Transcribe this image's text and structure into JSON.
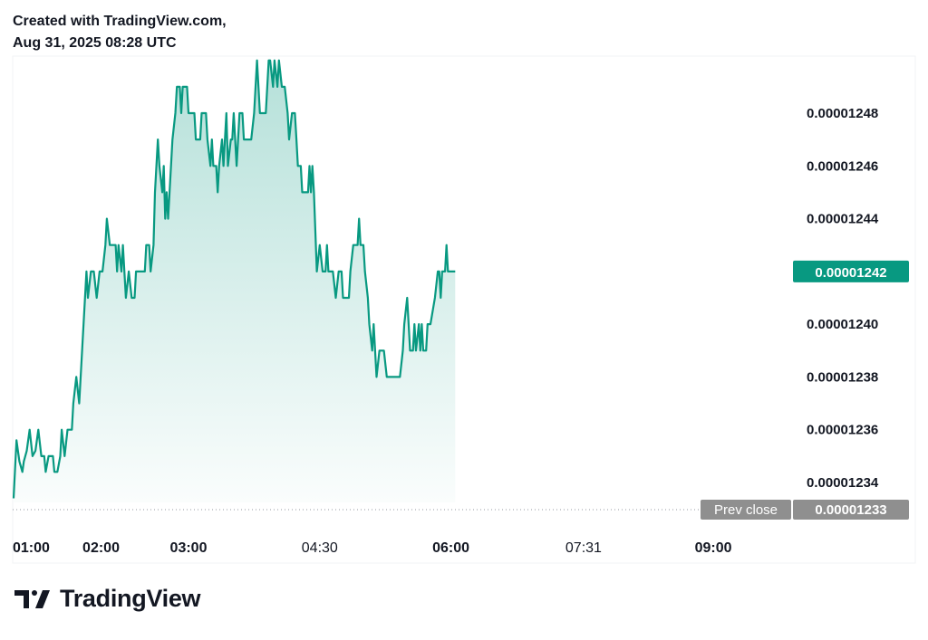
{
  "header": {
    "line1": "Created with TradingView.com,",
    "line2": "Aug 31, 2025 08:28 UTC"
  },
  "logo": {
    "wordmark": "TradingView",
    "icon": "tradingview-logo-icon"
  },
  "colors": {
    "line": "#089981",
    "badge": "#089981",
    "prev_badge": "#8f8f8f",
    "text": "#131722"
  },
  "chart_data": {
    "type": "area",
    "title": "",
    "xlabel": "",
    "ylabel": "",
    "ylim": [
      1.2327e-05,
      1.252e-05
    ],
    "y_ticks": [
      "0.00001234",
      "0.00001236",
      "0.00001238",
      "0.00001240",
      "0.00001242",
      "0.00001244",
      "0.00001246",
      "0.00001248"
    ],
    "x_ticks": [
      {
        "label": "01:00",
        "minute": 60,
        "bold": true
      },
      {
        "label": "02:00",
        "minute": 120,
        "bold": true
      },
      {
        "label": "03:00",
        "minute": 180,
        "bold": true
      },
      {
        "label": "04:30",
        "minute": 270,
        "bold": false
      },
      {
        "label": "06:00",
        "minute": 360,
        "bold": true
      },
      {
        "label": "07:31",
        "minute": 451,
        "bold": false
      },
      {
        "label": "09:00",
        "minute": 540,
        "bold": true
      }
    ],
    "x_range_minutes": [
      60,
      576
    ],
    "series": [
      {
        "points": [
          [
            60,
            1.2334e-05
          ],
          [
            62,
            1.2356e-05
          ],
          [
            63,
            1.2352e-05
          ],
          [
            64,
            1.2348e-05
          ],
          [
            66,
            1.2344e-05
          ],
          [
            67,
            1.2348e-05
          ],
          [
            69,
            1.2352e-05
          ],
          [
            71,
            1.236e-05
          ],
          [
            73,
            1.235e-05
          ],
          [
            75,
            1.2352e-05
          ],
          [
            77,
            1.236e-05
          ],
          [
            79,
            1.235e-05
          ],
          [
            81,
            1.235e-05
          ],
          [
            82,
            1.2344e-05
          ],
          [
            84,
            1.235e-05
          ],
          [
            87,
            1.235e-05
          ],
          [
            88,
            1.2344e-05
          ],
          [
            90,
            1.2344e-05
          ],
          [
            92,
            1.235e-05
          ],
          [
            93,
            1.236e-05
          ],
          [
            95,
            1.235e-05
          ],
          [
            97,
            1.236e-05
          ],
          [
            98,
            1.236e-05
          ],
          [
            100,
            1.236e-05
          ],
          [
            101,
            1.237e-05
          ],
          [
            103,
            1.238e-05
          ],
          [
            105,
            1.237e-05
          ],
          [
            107,
            1.239e-05
          ],
          [
            108,
            1.24e-05
          ],
          [
            110,
            1.242e-05
          ],
          [
            111,
            1.241e-05
          ],
          [
            113,
            1.242e-05
          ],
          [
            115,
            1.242e-05
          ],
          [
            117,
            1.241e-05
          ],
          [
            119,
            1.242e-05
          ],
          [
            121,
            1.242e-05
          ],
          [
            123,
            1.243e-05
          ],
          [
            124,
            1.244e-05
          ],
          [
            126,
            1.243e-05
          ],
          [
            128,
            1.243e-05
          ],
          [
            130,
            1.243e-05
          ],
          [
            131,
            1.242e-05
          ],
          [
            132,
            1.243e-05
          ],
          [
            134,
            1.242e-05
          ],
          [
            135,
            1.243e-05
          ],
          [
            137,
            1.241e-05
          ],
          [
            139,
            1.242e-05
          ],
          [
            141,
            1.241e-05
          ],
          [
            143,
            1.241e-05
          ],
          [
            144,
            1.242e-05
          ],
          [
            146,
            1.242e-05
          ],
          [
            150,
            1.242e-05
          ],
          [
            151,
            1.243e-05
          ],
          [
            153,
            1.243e-05
          ],
          [
            154,
            1.242e-05
          ],
          [
            156,
            1.243e-05
          ],
          [
            157,
            1.245e-05
          ],
          [
            159,
            1.247e-05
          ],
          [
            160,
            1.246e-05
          ],
          [
            162,
            1.245e-05
          ],
          [
            163,
            1.246e-05
          ],
          [
            164,
            1.244e-05
          ],
          [
            165,
            1.245e-05
          ],
          [
            166,
            1.244e-05
          ],
          [
            167,
            1.245e-05
          ],
          [
            169,
            1.247e-05
          ],
          [
            171,
            1.248e-05
          ],
          [
            172,
            1.249e-05
          ],
          [
            174,
            1.249e-05
          ],
          [
            175,
            1.248e-05
          ],
          [
            176,
            1.249e-05
          ],
          [
            179,
            1.249e-05
          ],
          [
            180,
            1.248e-05
          ],
          [
            184,
            1.248e-05
          ],
          [
            185,
            1.247e-05
          ],
          [
            188,
            1.247e-05
          ],
          [
            189,
            1.248e-05
          ],
          [
            192,
            1.248e-05
          ],
          [
            193,
            1.247e-05
          ],
          [
            195,
            1.246e-05
          ],
          [
            196,
            1.247e-05
          ],
          [
            197,
            1.246e-05
          ],
          [
            199,
            1.246e-05
          ],
          [
            200,
            1.245e-05
          ],
          [
            201,
            1.246e-05
          ],
          [
            203,
            1.247e-05
          ],
          [
            204,
            1.246e-05
          ],
          [
            206,
            1.248e-05
          ],
          [
            207,
            1.246e-05
          ],
          [
            209,
            1.247e-05
          ],
          [
            210,
            1.247e-05
          ],
          [
            211,
            1.248e-05
          ],
          [
            212,
            1.247e-05
          ],
          [
            213,
            1.246e-05
          ],
          [
            215,
            1.248e-05
          ],
          [
            217,
            1.248e-05
          ],
          [
            218,
            1.247e-05
          ],
          [
            223,
            1.247e-05
          ],
          [
            225,
            1.248e-05
          ],
          [
            227,
            1.25e-05
          ],
          [
            229,
            1.248e-05
          ],
          [
            233,
            1.248e-05
          ],
          [
            234,
            1.249e-05
          ],
          [
            235,
            1.25e-05
          ],
          [
            236,
            1.25e-05
          ],
          [
            238,
            1.249e-05
          ],
          [
            239,
            1.25e-05
          ],
          [
            241,
            1.249e-05
          ],
          [
            242,
            1.25e-05
          ],
          [
            244,
            1.249e-05
          ],
          [
            246,
            1.249e-05
          ],
          [
            248,
            1.248e-05
          ],
          [
            249,
            1.247e-05
          ],
          [
            251,
            1.248e-05
          ],
          [
            253,
            1.248e-05
          ],
          [
            254,
            1.247e-05
          ],
          [
            255,
            1.246e-05
          ],
          [
            257,
            1.246e-05
          ],
          [
            258,
            1.245e-05
          ],
          [
            262,
            1.245e-05
          ],
          [
            263,
            1.246e-05
          ],
          [
            264,
            1.245e-05
          ],
          [
            265,
            1.246e-05
          ],
          [
            266,
            1.245e-05
          ],
          [
            268,
            1.242e-05
          ],
          [
            270,
            1.243e-05
          ],
          [
            272,
            1.242e-05
          ],
          [
            274,
            1.242e-05
          ],
          [
            275,
            1.243e-05
          ],
          [
            276,
            1.242e-05
          ],
          [
            279,
            1.242e-05
          ],
          [
            281,
            1.241e-05
          ],
          [
            283,
            1.242e-05
          ],
          [
            285,
            1.242e-05
          ],
          [
            286,
            1.241e-05
          ],
          [
            290,
            1.241e-05
          ],
          [
            291,
            1.242e-05
          ],
          [
            293,
            1.243e-05
          ],
          [
            296,
            1.243e-05
          ],
          [
            297,
            1.244e-05
          ],
          [
            298,
            1.243e-05
          ],
          [
            300,
            1.243e-05
          ],
          [
            301,
            1.242e-05
          ],
          [
            303,
            1.241e-05
          ],
          [
            304,
            1.24e-05
          ],
          [
            306,
            1.239e-05
          ],
          [
            307,
            1.24e-05
          ],
          [
            308,
            1.239e-05
          ],
          [
            309,
            1.238e-05
          ],
          [
            311,
            1.239e-05
          ],
          [
            314,
            1.239e-05
          ],
          [
            316,
            1.238e-05
          ],
          [
            325,
            1.238e-05
          ],
          [
            327,
            1.239e-05
          ],
          [
            328,
            1.24e-05
          ],
          [
            330,
            1.241e-05
          ],
          [
            331,
            1.24e-05
          ],
          [
            332,
            1.239e-05
          ],
          [
            334,
            1.239e-05
          ],
          [
            335,
            1.24e-05
          ],
          [
            336,
            1.239e-05
          ],
          [
            338,
            1.24e-05
          ],
          [
            339,
            1.239e-05
          ],
          [
            340,
            1.24e-05
          ],
          [
            341,
            1.239e-05
          ],
          [
            343,
            1.239e-05
          ],
          [
            344,
            1.24e-05
          ],
          [
            346,
            1.24e-05
          ],
          [
            349,
            1.241e-05
          ],
          [
            351,
            1.242e-05
          ],
          [
            352,
            1.242e-05
          ],
          [
            353,
            1.241e-05
          ],
          [
            354,
            1.242e-05
          ],
          [
            356,
            1.242e-05
          ],
          [
            357,
            1.243e-05
          ],
          [
            358,
            1.242e-05
          ]
        ]
      }
    ],
    "last_value_label": "0.00001242",
    "prev_close": {
      "label": "Prev close",
      "value_label": "0.00001233",
      "value": 1.2333e-05
    }
  }
}
